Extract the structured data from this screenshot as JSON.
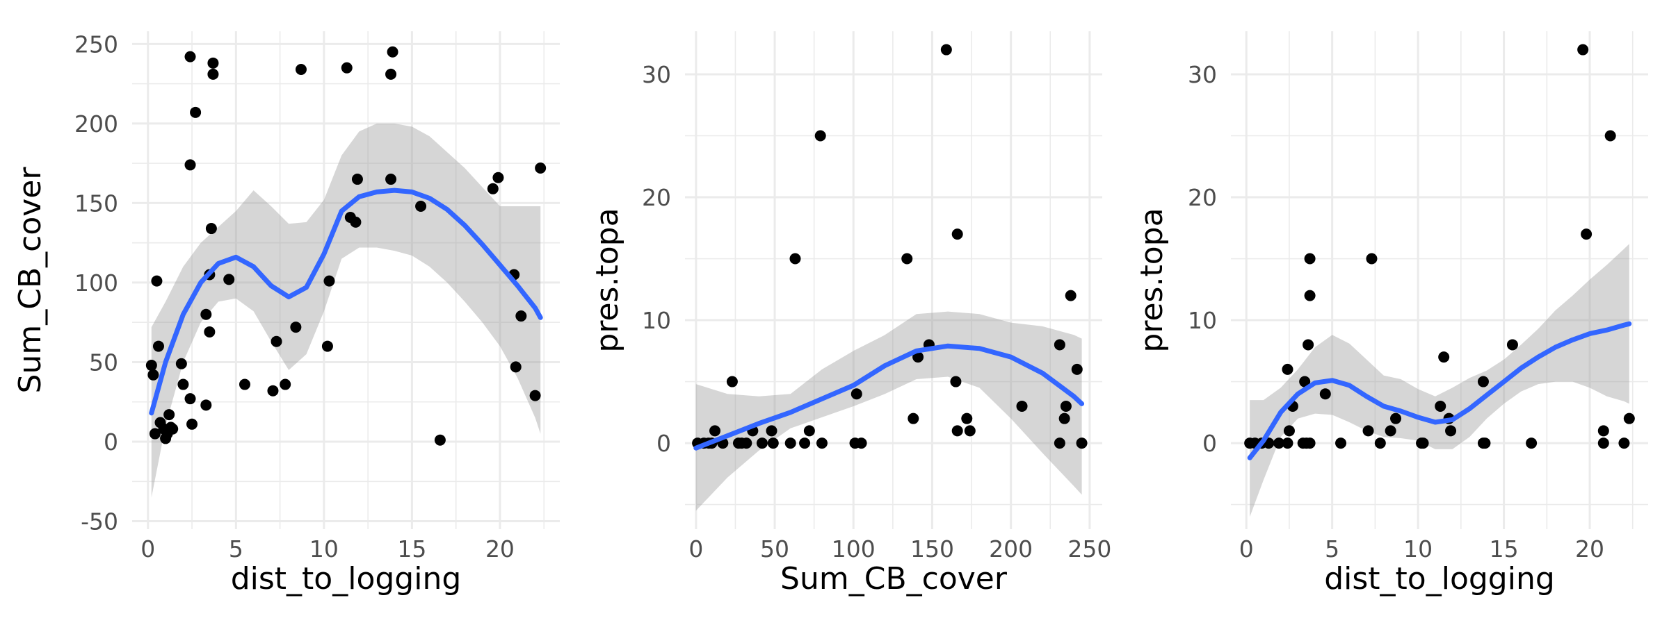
{
  "colors": {
    "points": "#000000",
    "fit_line": "#3366ff",
    "band": "#999999",
    "grid": "#ebebeb"
  },
  "chart_data": [
    {
      "type": "scatter",
      "xlabel": "dist_to_logging",
      "ylabel": "Sum_CB_cover",
      "xlim": [
        -0.9,
        23.4
      ],
      "ylim": [
        -55,
        258
      ],
      "xticks": [
        0,
        5,
        10,
        15,
        20
      ],
      "yticks": [
        -50,
        0,
        50,
        100,
        150,
        200,
        250
      ],
      "grid": true,
      "smooth": "loess with confidence band",
      "points": [
        {
          "x": 0.2,
          "y": 48
        },
        {
          "x": 0.3,
          "y": 42
        },
        {
          "x": 0.4,
          "y": 5
        },
        {
          "x": 0.5,
          "y": 101
        },
        {
          "x": 0.6,
          "y": 60
        },
        {
          "x": 0.7,
          "y": 12
        },
        {
          "x": 0.9,
          "y": 8
        },
        {
          "x": 1.0,
          "y": 2
        },
        {
          "x": 1.1,
          "y": 5
        },
        {
          "x": 1.2,
          "y": 17
        },
        {
          "x": 1.3,
          "y": 9
        },
        {
          "x": 1.4,
          "y": 8
        },
        {
          "x": 1.9,
          "y": 49
        },
        {
          "x": 2.0,
          "y": 36
        },
        {
          "x": 2.4,
          "y": 27
        },
        {
          "x": 2.4,
          "y": 174
        },
        {
          "x": 2.4,
          "y": 242
        },
        {
          "x": 2.5,
          "y": 11
        },
        {
          "x": 2.7,
          "y": 207
        },
        {
          "x": 3.3,
          "y": 80
        },
        {
          "x": 3.3,
          "y": 23
        },
        {
          "x": 3.5,
          "y": 69
        },
        {
          "x": 3.5,
          "y": 105
        },
        {
          "x": 3.6,
          "y": 134
        },
        {
          "x": 3.7,
          "y": 231
        },
        {
          "x": 3.7,
          "y": 238
        },
        {
          "x": 4.6,
          "y": 102
        },
        {
          "x": 5.5,
          "y": 36
        },
        {
          "x": 7.1,
          "y": 32
        },
        {
          "x": 7.3,
          "y": 63
        },
        {
          "x": 7.8,
          "y": 36
        },
        {
          "x": 8.4,
          "y": 72
        },
        {
          "x": 8.7,
          "y": 234
        },
        {
          "x": 10.2,
          "y": 60
        },
        {
          "x": 10.3,
          "y": 101
        },
        {
          "x": 11.3,
          "y": 235
        },
        {
          "x": 11.5,
          "y": 141
        },
        {
          "x": 11.8,
          "y": 138
        },
        {
          "x": 11.9,
          "y": 165
        },
        {
          "x": 13.8,
          "y": 165
        },
        {
          "x": 13.8,
          "y": 231
        },
        {
          "x": 13.9,
          "y": 245
        },
        {
          "x": 15.5,
          "y": 148
        },
        {
          "x": 16.6,
          "y": 1
        },
        {
          "x": 19.6,
          "y": 159
        },
        {
          "x": 19.9,
          "y": 166
        },
        {
          "x": 20.8,
          "y": 105
        },
        {
          "x": 20.9,
          "y": 47
        },
        {
          "x": 21.2,
          "y": 79
        },
        {
          "x": 22.0,
          "y": 29
        },
        {
          "x": 22.3,
          "y": 172
        }
      ],
      "fit": {
        "x": [
          0.2,
          1,
          2,
          3,
          4,
          5,
          6,
          7,
          8,
          9,
          10,
          11,
          12,
          13,
          14,
          15,
          16,
          17,
          18,
          19,
          20,
          21,
          22,
          22.3
        ],
        "y": [
          18,
          50,
          80,
          100,
          112,
          116,
          110,
          98,
          91,
          97,
          118,
          145,
          154,
          157,
          158,
          157,
          153,
          146,
          136,
          124,
          111,
          98,
          84,
          78
        ],
        "low": [
          -35,
          10,
          50,
          75,
          88,
          90,
          82,
          63,
          45,
          55,
          82,
          115,
          122,
          122,
          120,
          117,
          110,
          100,
          88,
          75,
          60,
          40,
          15,
          5
        ],
        "high": [
          72,
          88,
          110,
          125,
          135,
          145,
          158,
          148,
          137,
          138,
          152,
          180,
          195,
          200,
          200,
          198,
          192,
          182,
          172,
          160,
          148,
          148,
          148,
          148
        ]
      }
    },
    {
      "type": "scatter",
      "xlabel": "Sum_CB_cover",
      "ylabel": "pres.topa",
      "xlim": [
        -7,
        258
      ],
      "ylim": [
        -7,
        33.5
      ],
      "xticks": [
        0,
        50,
        100,
        150,
        200,
        250
      ],
      "yticks": [
        0,
        10,
        20,
        30
      ],
      "grid": true,
      "smooth": "loess with confidence band",
      "points": [
        {
          "x": 1,
          "y": 0
        },
        {
          "x": 5,
          "y": 0
        },
        {
          "x": 8,
          "y": 0
        },
        {
          "x": 10,
          "y": 0
        },
        {
          "x": 12,
          "y": 1
        },
        {
          "x": 17,
          "y": 0
        },
        {
          "x": 23,
          "y": 5
        },
        {
          "x": 27,
          "y": 0
        },
        {
          "x": 29,
          "y": 0
        },
        {
          "x": 32,
          "y": 0
        },
        {
          "x": 36,
          "y": 1
        },
        {
          "x": 42,
          "y": 0
        },
        {
          "x": 48,
          "y": 1
        },
        {
          "x": 49,
          "y": 0
        },
        {
          "x": 60,
          "y": 0
        },
        {
          "x": 63,
          "y": 15
        },
        {
          "x": 69,
          "y": 0
        },
        {
          "x": 72,
          "y": 1
        },
        {
          "x": 79,
          "y": 25
        },
        {
          "x": 80,
          "y": 0
        },
        {
          "x": 101,
          "y": 0
        },
        {
          "x": 102,
          "y": 4
        },
        {
          "x": 105,
          "y": 0
        },
        {
          "x": 134,
          "y": 15
        },
        {
          "x": 138,
          "y": 2
        },
        {
          "x": 141,
          "y": 7
        },
        {
          "x": 148,
          "y": 8
        },
        {
          "x": 159,
          "y": 32
        },
        {
          "x": 165,
          "y": 5
        },
        {
          "x": 166,
          "y": 17
        },
        {
          "x": 166,
          "y": 1
        },
        {
          "x": 172,
          "y": 2
        },
        {
          "x": 174,
          "y": 1
        },
        {
          "x": 207,
          "y": 3
        },
        {
          "x": 231,
          "y": 8
        },
        {
          "x": 231,
          "y": 0
        },
        {
          "x": 234,
          "y": 2
        },
        {
          "x": 235,
          "y": 3
        },
        {
          "x": 238,
          "y": 12
        },
        {
          "x": 242,
          "y": 6
        },
        {
          "x": 245,
          "y": 0
        }
      ],
      "fit": {
        "x": [
          0,
          20,
          40,
          60,
          80,
          100,
          120,
          140,
          160,
          180,
          200,
          220,
          240,
          245
        ],
        "y": [
          -0.4,
          0.6,
          1.6,
          2.5,
          3.6,
          4.7,
          6.3,
          7.5,
          7.9,
          7.7,
          7.0,
          5.7,
          3.8,
          3.2
        ],
        "low": [
          -5.5,
          -2.8,
          -0.6,
          1.2,
          2.1,
          3.0,
          4.0,
          5.2,
          5.4,
          4.5,
          2.0,
          -0.8,
          -3.5,
          -4.2
        ],
        "high": [
          4.8,
          4.0,
          3.8,
          4.0,
          6.0,
          7.5,
          8.8,
          10.5,
          10.7,
          10.5,
          9.8,
          9.5,
          8.8,
          8.5
        ]
      }
    },
    {
      "type": "scatter",
      "xlabel": "dist_to_logging",
      "ylabel": "pres.topa",
      "xlim": [
        -0.9,
        23.4
      ],
      "ylim": [
        -7,
        33.5
      ],
      "xticks": [
        0,
        5,
        10,
        15,
        20
      ],
      "yticks": [
        0,
        10,
        20,
        30
      ],
      "grid": true,
      "smooth": "loess with confidence band",
      "points": [
        {
          "x": 0.2,
          "y": 0
        },
        {
          "x": 0.5,
          "y": 0
        },
        {
          "x": 0.9,
          "y": 0
        },
        {
          "x": 1.3,
          "y": 0
        },
        {
          "x": 1.9,
          "y": 0
        },
        {
          "x": 2.4,
          "y": 0
        },
        {
          "x": 2.4,
          "y": 6
        },
        {
          "x": 2.5,
          "y": 1
        },
        {
          "x": 2.7,
          "y": 3
        },
        {
          "x": 3.3,
          "y": 0
        },
        {
          "x": 3.4,
          "y": 5
        },
        {
          "x": 3.5,
          "y": 0
        },
        {
          "x": 3.6,
          "y": 8
        },
        {
          "x": 3.7,
          "y": 15
        },
        {
          "x": 3.7,
          "y": 12
        },
        {
          "x": 3.7,
          "y": 0
        },
        {
          "x": 4.6,
          "y": 4
        },
        {
          "x": 5.5,
          "y": 0
        },
        {
          "x": 7.1,
          "y": 1
        },
        {
          "x": 7.3,
          "y": 15
        },
        {
          "x": 7.8,
          "y": 0
        },
        {
          "x": 8.4,
          "y": 1
        },
        {
          "x": 8.7,
          "y": 2
        },
        {
          "x": 10.2,
          "y": 0
        },
        {
          "x": 10.3,
          "y": 0
        },
        {
          "x": 11.3,
          "y": 3
        },
        {
          "x": 11.5,
          "y": 7
        },
        {
          "x": 11.8,
          "y": 2
        },
        {
          "x": 11.9,
          "y": 1
        },
        {
          "x": 13.8,
          "y": 5
        },
        {
          "x": 13.8,
          "y": 0
        },
        {
          "x": 13.9,
          "y": 0
        },
        {
          "x": 15.5,
          "y": 8
        },
        {
          "x": 16.6,
          "y": 0
        },
        {
          "x": 19.6,
          "y": 32
        },
        {
          "x": 19.8,
          "y": 17
        },
        {
          "x": 20.8,
          "y": 1
        },
        {
          "x": 20.8,
          "y": 0
        },
        {
          "x": 21.2,
          "y": 25
        },
        {
          "x": 22.0,
          "y": 0
        },
        {
          "x": 22.3,
          "y": 2
        }
      ],
      "fit": {
        "x": [
          0.2,
          1,
          2,
          3,
          4,
          5,
          6,
          7,
          8,
          9,
          10,
          11,
          12,
          13,
          14,
          15,
          16,
          17,
          18,
          19,
          20,
          21,
          22,
          22.3
        ],
        "y": [
          -1.2,
          0.2,
          2.5,
          4.0,
          4.9,
          5.1,
          4.7,
          3.8,
          3.0,
          2.6,
          2.1,
          1.7,
          1.9,
          2.8,
          3.9,
          5.0,
          6.1,
          7.0,
          7.8,
          8.4,
          8.9,
          9.2,
          9.6,
          9.7
        ],
        "low": [
          -6.0,
          -3.0,
          0.5,
          2.0,
          2.4,
          2.3,
          1.7,
          1.0,
          0.5,
          0.4,
          0.2,
          -0.5,
          -0.5,
          0.5,
          2.0,
          3.2,
          4.2,
          4.8,
          5.0,
          5.0,
          4.5,
          3.8,
          3.4,
          3.2
        ],
        "high": [
          3.5,
          3.5,
          4.5,
          6.0,
          7.8,
          8.8,
          8.1,
          6.8,
          5.5,
          5.2,
          4.4,
          3.8,
          4.5,
          5.3,
          5.9,
          6.8,
          8.0,
          9.3,
          10.8,
          12.0,
          13.3,
          14.5,
          15.8,
          16.2
        ]
      }
    }
  ]
}
